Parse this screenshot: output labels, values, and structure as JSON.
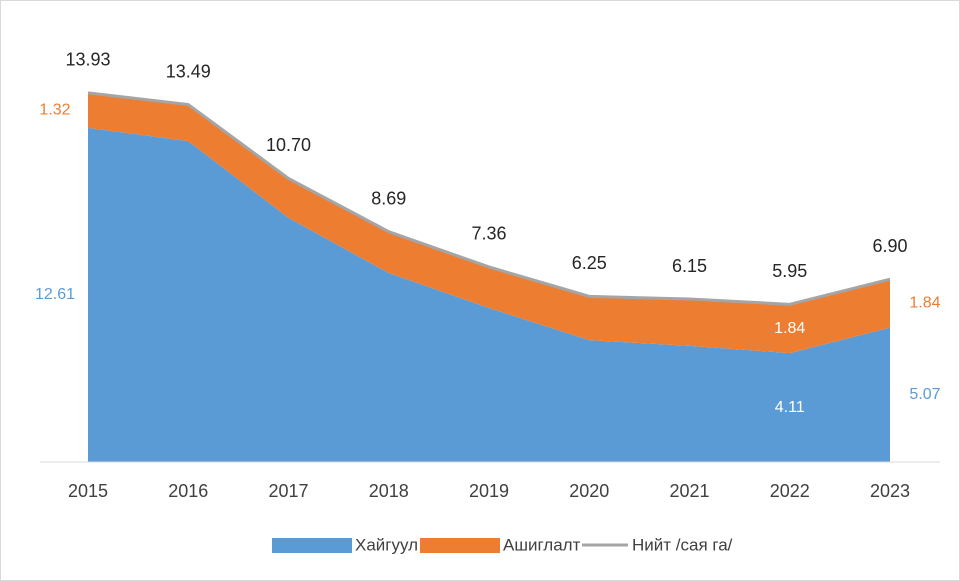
{
  "chart_data": {
    "type": "stacked_area",
    "categories": [
      "2015",
      "2016",
      "2017",
      "2018",
      "2019",
      "2020",
      "2021",
      "2022",
      "2023"
    ],
    "series": [
      {
        "name": "Хайгуул",
        "color": "#5b9bd5",
        "values": [
          12.61,
          12.11,
          9.21,
          7.13,
          5.81,
          4.6,
          4.38,
          4.11,
          5.07
        ],
        "value_labels": [
          "12.61",
          null,
          null,
          null,
          null,
          null,
          null,
          "4.11",
          "5.07"
        ]
      },
      {
        "name": "Ашиглалт",
        "color": "#ed7d31",
        "values": [
          1.32,
          1.38,
          1.49,
          1.56,
          1.55,
          1.65,
          1.77,
          1.84,
          1.84
        ],
        "value_labels": [
          "1.32",
          null,
          null,
          null,
          null,
          null,
          null,
          "1.84",
          "1.84"
        ]
      },
      {
        "name": "Нийт /сая га/",
        "color": "#a5a5a5",
        "type": "line",
        "values": [
          13.93,
          13.49,
          10.7,
          8.69,
          7.36,
          6.25,
          6.15,
          5.95,
          6.9
        ],
        "value_labels": [
          "13.93",
          "13.49",
          "10.70",
          "8.69",
          "7.36",
          "6.25",
          "6.15",
          "5.95",
          "6.90"
        ]
      }
    ],
    "ylim": [
      0,
      16
    ],
    "legend": "bottom"
  }
}
